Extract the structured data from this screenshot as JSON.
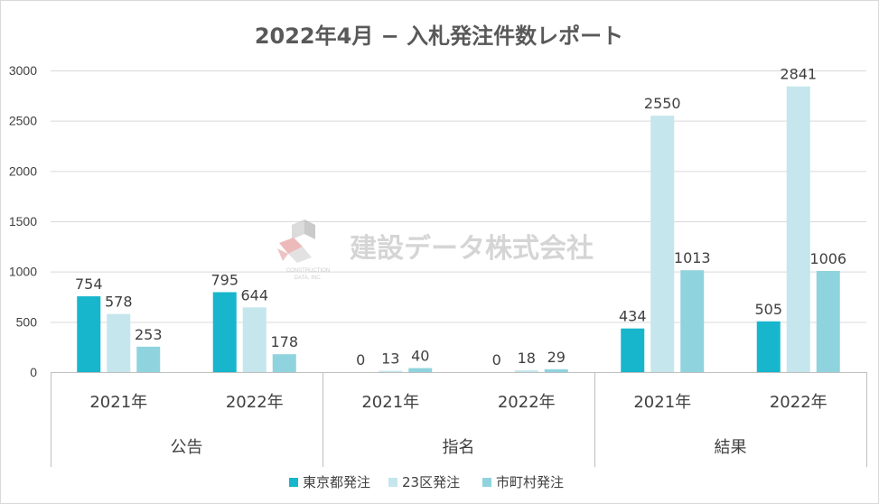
{
  "chart_data": {
    "type": "bar",
    "title": "2022年4月 − 入札発注件数レポート",
    "ylim": [
      0,
      3000
    ],
    "yticks": [
      0,
      500,
      1000,
      1500,
      2000,
      2500,
      3000
    ],
    "grid": true,
    "legend_position": "bottom",
    "groups": [
      {
        "label": "公告",
        "categories": [
          "2021年",
          "2022年"
        ]
      },
      {
        "label": "指名",
        "categories": [
          "2021年",
          "2022年"
        ]
      },
      {
        "label": "結果",
        "categories": [
          "2021年",
          "2022年"
        ]
      }
    ],
    "categories": [
      "公告 2021年",
      "公告 2022年",
      "指名 2021年",
      "指名 2022年",
      "結果 2021年",
      "結果 2022年"
    ],
    "series": [
      {
        "name": "東京都発注",
        "color": "#17b6cc",
        "values": [
          754,
          795,
          0,
          0,
          434,
          505
        ]
      },
      {
        "name": "23区発注",
        "color": "#c4e6ec",
        "values": [
          578,
          644,
          13,
          18,
          2550,
          2841
        ]
      },
      {
        "name": "市町村発注",
        "color": "#8fd3de",
        "values": [
          253,
          178,
          40,
          29,
          1013,
          1006
        ]
      }
    ]
  },
  "watermark": {
    "text": "建設データ株式会社",
    "sub_line1": "CONSTRUCTION",
    "sub_line2": "DATA, INC.",
    "logo_icon": "construction-data-logo-icon"
  }
}
